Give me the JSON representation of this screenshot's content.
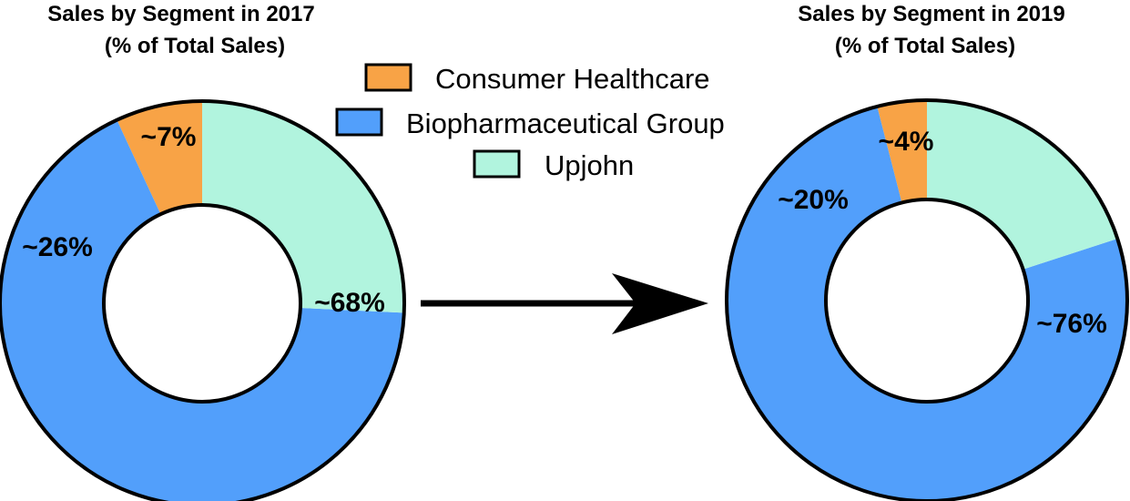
{
  "legend": [
    {
      "label": "Consumer Healthcare",
      "color": "#f8a346"
    },
    {
      "label": "Biopharmaceutical Group",
      "color": "#529ffb"
    },
    {
      "label": "Upjohn",
      "color": "#b1f4de"
    }
  ],
  "chart_data": [
    {
      "type": "pie",
      "title": "Sales by Segment in 2017",
      "subtitle": "(% of Total Sales)",
      "slices": [
        {
          "name": "Consumer Healthcare",
          "value": 7,
          "label": "~7%",
          "color": "#f8a346"
        },
        {
          "name": "Biopharmaceutical Group",
          "value": 68,
          "label": "~68%",
          "color": "#529ffb"
        },
        {
          "name": "Upjohn",
          "value": 26,
          "label": "~26%",
          "color": "#b1f4de"
        }
      ]
    },
    {
      "type": "pie",
      "title": "Sales by Segment in 2019",
      "subtitle": "(% of Total Sales)",
      "slices": [
        {
          "name": "Consumer Healthcare",
          "value": 4,
          "label": "~4%",
          "color": "#f8a346"
        },
        {
          "name": "Biopharmaceutical Group",
          "value": 76,
          "label": "~76%",
          "color": "#529ffb"
        },
        {
          "name": "Upjohn",
          "value": 20,
          "label": "~20%",
          "color": "#b1f4de"
        }
      ]
    }
  ]
}
